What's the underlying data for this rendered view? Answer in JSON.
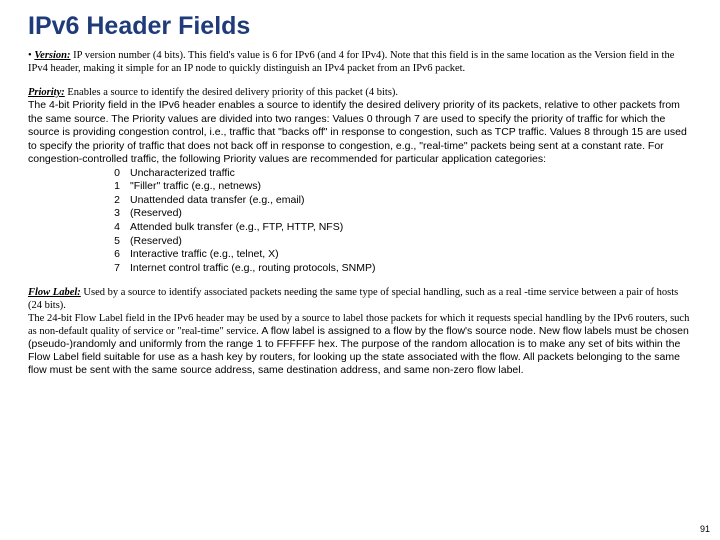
{
  "title": "IPv6 Header Fields",
  "version": {
    "label": "Version:",
    "text": " IP version number (4 bits). This field's value is 6 for IPv6 (and 4 for IPv4). Note that this field is in the same location as the Version field in the IPv4 header, making it simple for an IP node to quickly distinguish an IPv4 packet from an IPv6 packet."
  },
  "priority": {
    "label": "Priority:",
    "lead": " Enables a source to identify the desired delivery priority of this packet (4 bits).",
    "body": "The 4-bit Priority field in the IPv6 header enables a source to identify the desired delivery priority of its packets, relative to other packets from the same source. The Priority values are divided into two ranges: Values 0 through 7 are used to specify the priority of traffic for which the source is providing congestion control, i.e., traffic that \"backs off\" in response to congestion, such as TCP traffic. Values 8 through 15 are used to specify the priority of traffic that does not back off in response to congestion, e.g., \"real-time\" packets being sent at a constant rate. For congestion-controlled traffic, the following Priority values are recommended for particular application categories:",
    "items": [
      {
        "n": "0",
        "t": "Uncharacterized traffic"
      },
      {
        "n": "1",
        "t": "\"Filler\" traffic (e.g., netnews)"
      },
      {
        "n": "2",
        "t": "Unattended data transfer (e.g., email)"
      },
      {
        "n": "3",
        "t": "(Reserved)"
      },
      {
        "n": "4",
        "t": "Attended bulk transfer (e.g., FTP, HTTP, NFS)"
      },
      {
        "n": "5",
        "t": "(Reserved)"
      },
      {
        "n": "6",
        "t": "Interactive traffic (e.g., telnet, X)"
      },
      {
        "n": "7",
        "t": "Internet control traffic (e.g., routing protocols, SNMP)"
      }
    ]
  },
  "flowlabel": {
    "label": "Flow Label:",
    "lead": " Used by a source to identify associated packets needing the same type of special handling, such as a real -time service between a pair of hosts (24 bits).",
    "body1": "The 24-bit Flow Label field in the IPv6 header may be used by a source to label those packets for which it requests special handling by the IPv6 routers, such as non-default quality of service or \"real-time\" service. ",
    "body2": "A flow label is assigned to a flow by the flow's source node. New flow labels must be chosen (pseudo-)randomly and uniformly from the range 1 to FFFFFF hex. The purpose of the random allocation is to make any set of bits within the Flow Label field suitable for use as a hash key by routers, for looking up the state associated with the flow. All packets belonging to the same flow must be sent with the same source address, same destination address, and same non-zero flow label."
  },
  "page": "91"
}
